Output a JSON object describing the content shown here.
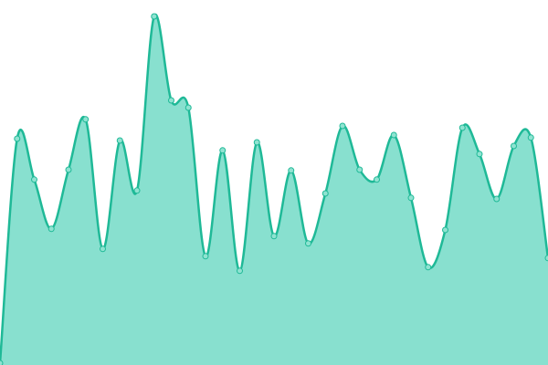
{
  "chart_data": {
    "type": "area",
    "categories": [
      null,
      null,
      null,
      null,
      null,
      null,
      null,
      null,
      null,
      null,
      null,
      null,
      null,
      null,
      null,
      null,
      null,
      null,
      null,
      null,
      null,
      null,
      null,
      null,
      null,
      null,
      null,
      null,
      null,
      null,
      null,
      null,
      null
    ],
    "values": [
      0.5,
      62,
      50.8,
      37.3,
      53.5,
      67.3,
      31.8,
      61.5,
      47.8,
      95.5,
      72.5,
      70.5,
      29.8,
      58.8,
      25.8,
      61,
      35.3,
      53.3,
      33.3,
      47,
      65.5,
      53.5,
      50.8,
      63,
      45.8,
      26.8,
      37,
      65,
      57.8,
      45.5,
      60,
      62.3,
      29.3
    ],
    "ylim": [
      0,
      100
    ],
    "color": "#1fb997",
    "fill": "#88e0cf",
    "marker_fill": "#8fe3d1"
  }
}
